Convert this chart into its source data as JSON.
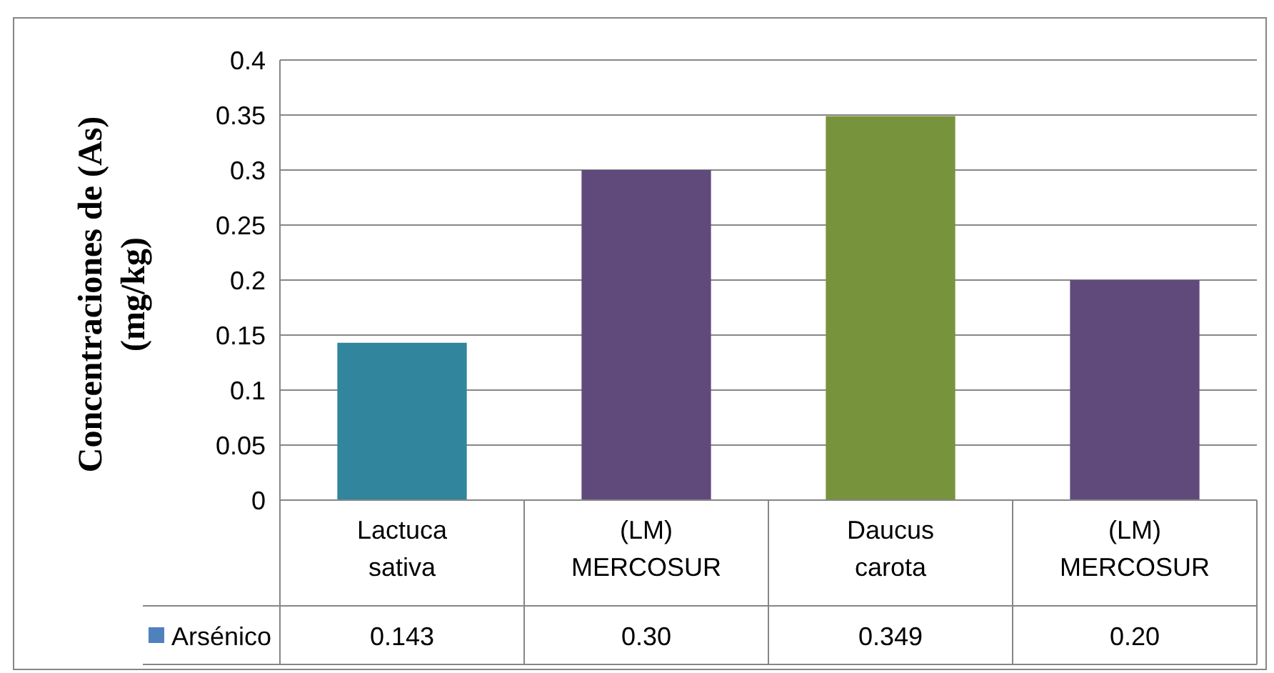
{
  "chart_data": {
    "type": "bar",
    "ylabel": "Concentraciones de (As)\n(mg/kg)",
    "categories": [
      "Lactuca sativa",
      "(LM) MERCOSUR",
      "Daucus carota",
      "(LM) MERCOSUR"
    ],
    "series": [
      {
        "name": "Arsénico",
        "color": "#4f81bd",
        "colors": [
          "#31859c",
          "#604a7b",
          "#77933c",
          "#604a7b"
        ],
        "values": [
          0.143,
          0.3,
          0.349,
          0.2
        ],
        "value_labels": [
          "0.143",
          "0.30",
          "0.349",
          "0.20"
        ]
      }
    ],
    "ylim": [
      0,
      0.4
    ],
    "yticks": [
      0,
      0.05,
      0.1,
      0.15,
      0.2,
      0.25,
      0.3,
      0.35,
      0.4
    ],
    "legend": "bottom",
    "grid": "y"
  }
}
